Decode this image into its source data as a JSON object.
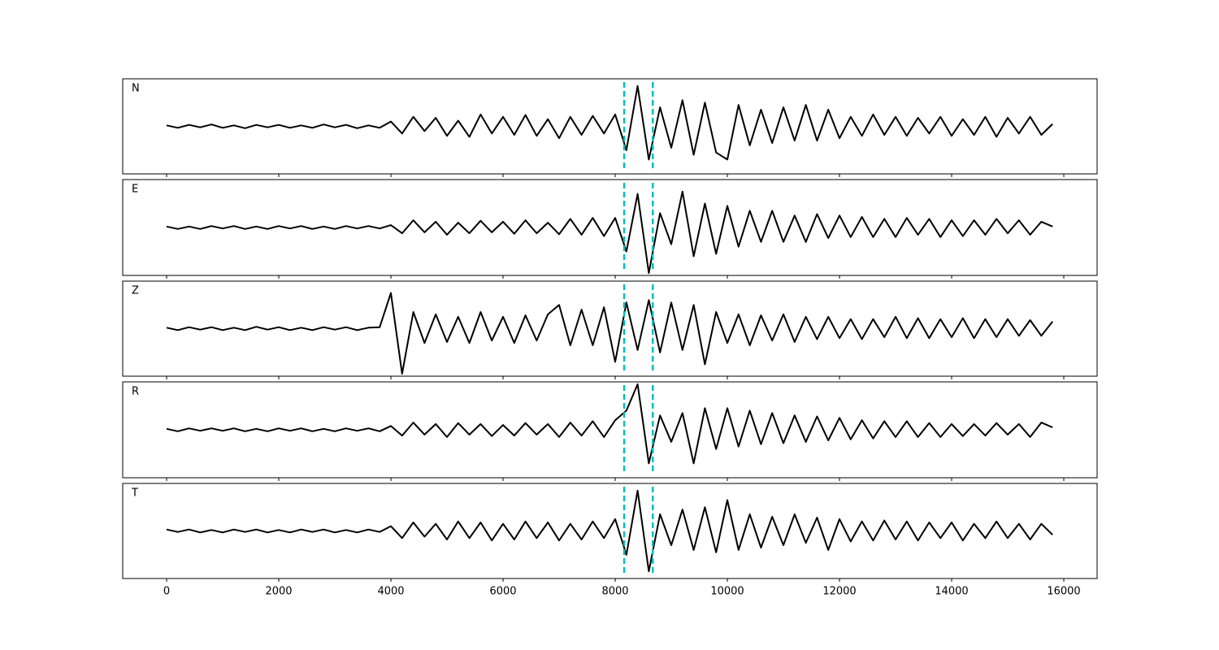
{
  "chart_data": {
    "type": "line",
    "x": [
      0,
      200,
      400,
      600,
      800,
      1000,
      1200,
      1400,
      1600,
      1800,
      2000,
      2200,
      2400,
      2600,
      2800,
      3000,
      3200,
      3400,
      3600,
      3800,
      4000,
      4200,
      4400,
      4600,
      4800,
      5000,
      5200,
      5400,
      5600,
      5800,
      6000,
      6200,
      6400,
      6600,
      6800,
      7000,
      7200,
      7400,
      7600,
      7800,
      8000,
      8200,
      8400,
      8600,
      8800,
      9000,
      9200,
      9400,
      9600,
      9800,
      10000,
      10200,
      10400,
      10600,
      10800,
      11000,
      11200,
      11400,
      11600,
      11800,
      12000,
      12200,
      12400,
      12600,
      12800,
      13000,
      13200,
      13400,
      13600,
      13800,
      14000,
      14200,
      14400,
      14600,
      14800,
      15000,
      15200,
      15400,
      15600,
      15800
    ],
    "xlim": [
      -783,
      16594
    ],
    "xticks": [
      0,
      2000,
      4000,
      6000,
      8000,
      10000,
      12000,
      14000,
      16000
    ],
    "ylim": [
      -1,
      1
    ],
    "series": [
      {
        "name": "N",
        "color": "#000000",
        "values": [
          0.02,
          -0.03,
          0.03,
          -0.02,
          0.04,
          -0.03,
          0.02,
          -0.04,
          0.03,
          -0.02,
          0.03,
          -0.03,
          0.02,
          -0.03,
          0.04,
          -0.02,
          0.03,
          -0.04,
          0.02,
          -0.03,
          0.1,
          -0.15,
          0.2,
          -0.1,
          0.18,
          -0.2,
          0.12,
          -0.22,
          0.25,
          -0.15,
          0.2,
          -0.18,
          0.24,
          -0.2,
          0.15,
          -0.25,
          0.2,
          -0.18,
          0.22,
          -0.15,
          0.25,
          -0.5,
          0.85,
          -0.7,
          0.4,
          -0.45,
          0.55,
          -0.6,
          0.5,
          -0.55,
          -0.7,
          0.45,
          -0.4,
          0.35,
          -0.35,
          0.4,
          -0.3,
          0.45,
          -0.3,
          0.35,
          -0.25,
          0.2,
          -0.2,
          0.25,
          -0.18,
          0.2,
          -0.2,
          0.18,
          -0.15,
          0.2,
          -0.2,
          0.15,
          -0.18,
          0.2,
          -0.22,
          0.18,
          -0.15,
          0.2,
          -0.18,
          0.05
        ]
      },
      {
        "name": "E",
        "color": "#000000",
        "values": [
          0.02,
          -0.03,
          0.02,
          -0.03,
          0.03,
          -0.02,
          0.03,
          -0.03,
          0.02,
          -0.03,
          0.03,
          -0.02,
          0.03,
          -0.03,
          0.02,
          -0.03,
          0.03,
          -0.02,
          0.03,
          -0.02,
          0.05,
          -0.12,
          0.15,
          -0.1,
          0.12,
          -0.15,
          0.1,
          -0.12,
          0.14,
          -0.1,
          0.12,
          -0.13,
          0.15,
          -0.12,
          0.1,
          -0.14,
          0.18,
          -0.15,
          0.2,
          -0.18,
          0.2,
          -0.5,
          0.7,
          -0.95,
          0.3,
          -0.35,
          0.75,
          -0.6,
          0.5,
          -0.55,
          0.45,
          -0.4,
          0.35,
          -0.3,
          0.35,
          -0.3,
          0.25,
          -0.3,
          0.28,
          -0.22,
          0.25,
          -0.2,
          0.22,
          -0.2,
          0.18,
          -0.2,
          0.2,
          -0.15,
          0.18,
          -0.2,
          0.15,
          -0.18,
          0.15,
          -0.15,
          0.18,
          -0.12,
          0.15,
          -0.15,
          0.12,
          0.02
        ]
      },
      {
        "name": "Z",
        "color": "#000000",
        "values": [
          0.02,
          -0.03,
          0.03,
          -0.02,
          0.03,
          -0.03,
          0.02,
          -0.03,
          0.04,
          -0.02,
          0.03,
          -0.03,
          0.02,
          -0.03,
          0.03,
          -0.02,
          0.03,
          -0.03,
          0.02,
          0.03,
          0.75,
          -0.95,
          0.35,
          -0.3,
          0.3,
          -0.28,
          0.25,
          -0.3,
          0.35,
          -0.25,
          0.25,
          -0.3,
          0.28,
          -0.25,
          0.3,
          0.5,
          -0.35,
          0.4,
          -0.35,
          0.45,
          -0.7,
          0.55,
          -0.45,
          0.6,
          -0.5,
          0.55,
          -0.45,
          0.5,
          -0.75,
          0.35,
          -0.3,
          0.3,
          -0.35,
          0.28,
          -0.25,
          0.3,
          -0.28,
          0.25,
          -0.22,
          0.25,
          -0.2,
          0.2,
          -0.22,
          0.2,
          -0.18,
          0.25,
          -0.2,
          0.22,
          -0.2,
          0.2,
          -0.18,
          0.22,
          -0.2,
          0.2,
          -0.18,
          0.2,
          -0.15,
          0.18,
          -0.15,
          0.15
        ]
      },
      {
        "name": "R",
        "color": "#000000",
        "values": [
          0.02,
          -0.03,
          0.03,
          -0.02,
          0.03,
          -0.02,
          0.03,
          -0.03,
          0.02,
          -0.03,
          0.03,
          -0.02,
          0.03,
          -0.03,
          0.02,
          -0.03,
          0.03,
          -0.02,
          0.03,
          -0.03,
          0.08,
          -0.12,
          0.15,
          -0.1,
          0.12,
          -0.15,
          0.14,
          -0.1,
          0.12,
          -0.13,
          0.1,
          -0.12,
          0.14,
          -0.1,
          0.12,
          -0.15,
          0.15,
          -0.12,
          0.18,
          -0.15,
          0.2,
          0.4,
          0.95,
          -0.7,
          0.3,
          -0.25,
          0.35,
          -0.7,
          0.45,
          -0.4,
          0.45,
          -0.35,
          0.4,
          -0.3,
          0.35,
          -0.28,
          0.3,
          -0.25,
          0.28,
          -0.22,
          0.25,
          -0.2,
          0.2,
          -0.18,
          0.18,
          -0.15,
          0.18,
          -0.15,
          0.14,
          -0.15,
          0.12,
          -0.13,
          0.12,
          -0.12,
          0.14,
          -0.1,
          0.12,
          -0.15,
          0.15,
          0.05
        ]
      },
      {
        "name": "T",
        "color": "#000000",
        "values": [
          0.03,
          -0.02,
          0.03,
          -0.03,
          0.02,
          -0.03,
          0.03,
          -0.02,
          0.03,
          -0.03,
          0.02,
          -0.03,
          0.03,
          -0.02,
          0.03,
          -0.03,
          0.02,
          -0.03,
          0.03,
          -0.02,
          0.1,
          -0.15,
          0.18,
          -0.12,
          0.15,
          -0.18,
          0.2,
          -0.15,
          0.18,
          -0.2,
          0.15,
          -0.18,
          0.2,
          -0.15,
          0.18,
          -0.2,
          0.15,
          -0.18,
          0.2,
          -0.15,
          0.25,
          -0.5,
          0.85,
          -0.85,
          0.35,
          -0.3,
          0.45,
          -0.4,
          0.5,
          -0.45,
          0.65,
          -0.4,
          0.35,
          -0.35,
          0.3,
          -0.3,
          0.35,
          -0.25,
          0.28,
          -0.4,
          0.25,
          -0.22,
          0.2,
          -0.2,
          0.22,
          -0.18,
          0.2,
          -0.2,
          0.18,
          -0.15,
          0.18,
          -0.2,
          0.15,
          -0.15,
          0.2,
          -0.15,
          0.15,
          -0.18,
          0.15,
          -0.08
        ]
      }
    ],
    "vlines": [
      8160,
      8670
    ],
    "vline_color": "#00bfbf"
  }
}
